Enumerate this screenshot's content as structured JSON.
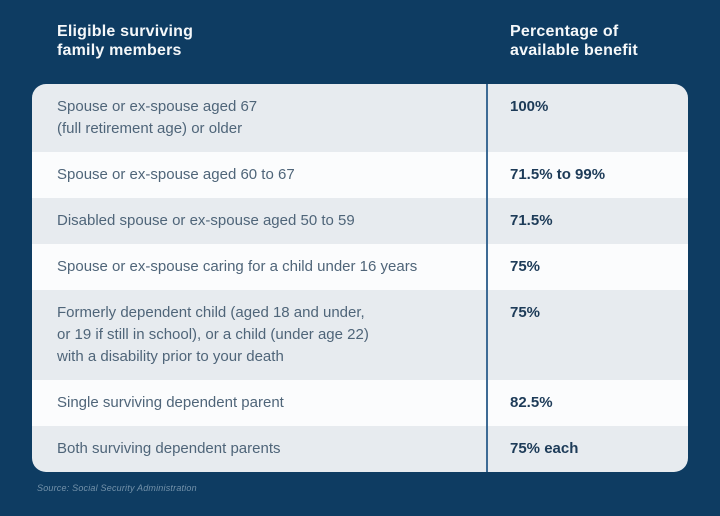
{
  "theme": {
    "background": "#0e3c62",
    "row_gray": "#e7ebef",
    "row_white": "#fbfcfd",
    "divider": "#3e6b95",
    "member_text": "#4f6579",
    "value_text": "#1d3b58",
    "header_text": "#f5f8fa",
    "footer_text": "#7492aa"
  },
  "header": {
    "members_label": [
      "Eligible surviving",
      "family members"
    ],
    "benefit_label": [
      "Percentage of",
      "available benefit"
    ]
  },
  "table": {
    "rows": [
      {
        "member": [
          "Spouse or ex-spouse aged 67",
          "(full retirement age) or older"
        ],
        "benefit": "100%"
      },
      {
        "member": [
          "Spouse or ex-spouse aged 60 to 67"
        ],
        "benefit": "71.5% to 99%"
      },
      {
        "member": [
          "Disabled spouse or ex-spouse aged 50 to 59"
        ],
        "benefit": "71.5%"
      },
      {
        "member": [
          "Spouse or ex-spouse caring for a child under 16 years"
        ],
        "benefit": "75%"
      },
      {
        "member": [
          "Formerly dependent child (aged 18 and under,",
          "or 19 if still in school), or a child (under age 22)",
          "with a disability prior to your death"
        ],
        "benefit": "75%"
      },
      {
        "member": [
          "Single surviving dependent parent"
        ],
        "benefit": "82.5%"
      },
      {
        "member": [
          "Both surviving dependent parents"
        ],
        "benefit": "75% each"
      }
    ]
  },
  "footer": {
    "source": "Source: Social Security Administration"
  },
  "chart_data": {
    "type": "table",
    "columns": [
      "Eligible surviving family members",
      "Percentage of available benefit"
    ],
    "rows": [
      [
        "Spouse or ex-spouse aged 67 (full retirement age) or older",
        "100%"
      ],
      [
        "Spouse or ex-spouse aged 60 to 67",
        "71.5% to 99%"
      ],
      [
        "Disabled spouse or ex-spouse aged 50 to 59",
        "71.5%"
      ],
      [
        "Spouse or ex-spouse caring for a child under 16 years",
        "75%"
      ],
      [
        "Formerly dependent child (aged 18 and under, or 19 if still in school), or a child (under age 22) with a disability prior to your death",
        "75%"
      ],
      [
        "Single surviving dependent parent",
        "82.5%"
      ],
      [
        "Both surviving dependent parents",
        "75% each"
      ]
    ],
    "source": "Source: Social Security Administration",
    "legend": "none",
    "grid": "off"
  }
}
